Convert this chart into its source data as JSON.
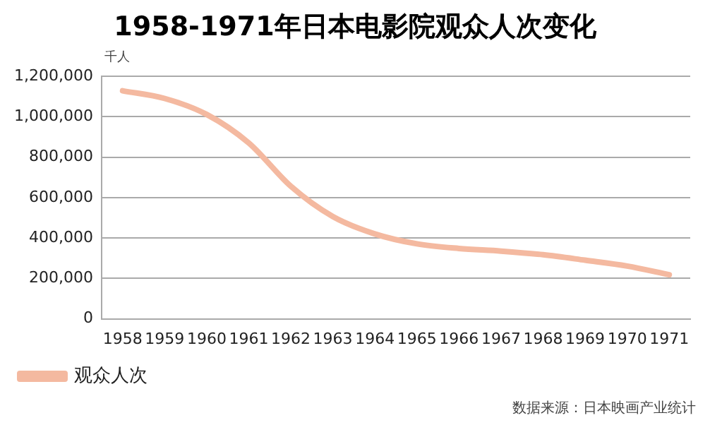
{
  "chart_data": {
    "type": "line",
    "title": "1958-1971年日本电影院观众人次变化",
    "ylabel": "千人",
    "categories": [
      "1958",
      "1959",
      "1960",
      "1961",
      "1962",
      "1963",
      "1964",
      "1965",
      "1966",
      "1967",
      "1968",
      "1969",
      "1970",
      "1971"
    ],
    "series": [
      {
        "name": "观众人次",
        "color": "#f4b9a0",
        "values": [
          1128000,
          1090000,
          1011000,
          870000,
          656000,
          506000,
          420000,
          371000,
          348000,
          335000,
          317000,
          290000,
          261000,
          218000
        ]
      }
    ],
    "ylim": [
      0,
      1200000
    ],
    "yticks": [
      0,
      {
        "value": 200000,
        "label": "200,000"
      },
      {
        "value": 400000,
        "label": "400,000"
      },
      {
        "value": 600000,
        "label": "600,000"
      },
      {
        "value": 800000,
        "label": "800,000"
      },
      {
        "value": 1000000,
        "label": "1,000,000"
      },
      {
        "value": 1200000,
        "label": "1,200,000"
      }
    ],
    "grid": "y",
    "legend": "bottom",
    "marker": "none",
    "line_style": "solid",
    "annotations": [
      "数据来源：日本映画产业统计"
    ]
  }
}
